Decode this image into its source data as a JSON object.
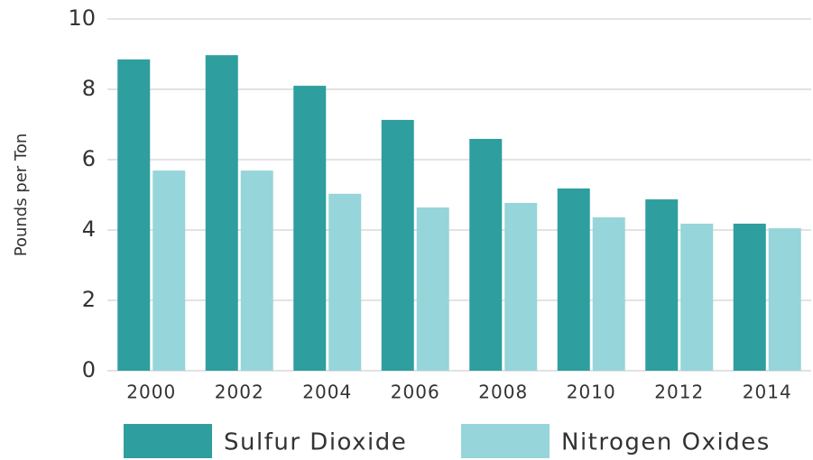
{
  "chart_data": {
    "type": "bar",
    "y_label": "Pounds per Ton",
    "categories": [
      "2000",
      "2002",
      "2004",
      "2006",
      "2008",
      "2010",
      "2012",
      "2014"
    ],
    "series": [
      {
        "name": "Sulfur Dioxide",
        "color": "#2e9e9e",
        "values": [
          8.85,
          8.97,
          8.1,
          7.13,
          6.59,
          5.18,
          4.87,
          4.18
        ]
      },
      {
        "name": "Nitrogen Oxides",
        "color": "#96d5da",
        "values": [
          5.69,
          5.69,
          5.03,
          4.64,
          4.77,
          4.36,
          4.18,
          4.05
        ]
      }
    ],
    "ylim": [
      0,
      10
    ],
    "yticks": [
      0,
      2,
      4,
      6,
      8,
      10
    ],
    "grid": true,
    "legend": "bottom"
  }
}
